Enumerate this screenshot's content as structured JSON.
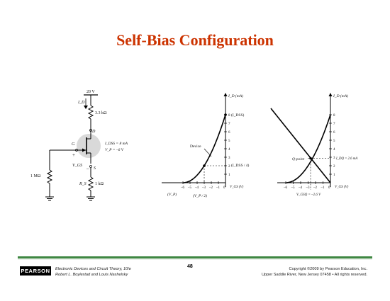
{
  "slide": {
    "title": "Self-Bias Configuration"
  },
  "circuit": {
    "supply": "20 V",
    "id_label": "I_D",
    "rd": "3.3 kΩ",
    "drain": "D",
    "gate": "G",
    "source": "S",
    "plus": "+",
    "minus": "–",
    "vgs": "V_GS",
    "rg": "1 MΩ",
    "rs_label": "R_S",
    "rs": "1 kΩ",
    "idss_spec": "I_DSS = 8 mA",
    "vp_spec": "V_P = –6 V"
  },
  "graph1": {
    "ylabel": "I_D (mA)",
    "xlabel": "V_GS (V)",
    "idss_label": "(I_DSS)",
    "device_label": "Device",
    "quarter_label": "(I_DSS / 4)",
    "vp_label": "(V_P)",
    "half_vp_label": "(V_P / 2)",
    "y_ticks": [
      "1",
      "2",
      "3",
      "4",
      "5",
      "6",
      "7",
      "8"
    ],
    "x_ticks": [
      "–6",
      "–5",
      "–4",
      "–3",
      "–2",
      "–1",
      "0"
    ]
  },
  "graph2": {
    "ylabel": "I_D (mA)",
    "xlabel": "V_GS (V)",
    "qpoint_label": "Q-point",
    "idq_label": "I_DQ = 2.6 mA",
    "vgsq_label": "V_GSQ = –2.6 V",
    "y_ticks": [
      "1",
      "2",
      "3",
      "4",
      "5",
      "6",
      "7",
      "8"
    ],
    "x_ticks": [
      "–6",
      "–5",
      "–4",
      "–3",
      "–2",
      "–1",
      "0"
    ]
  },
  "footer": {
    "logo": "PEARSON",
    "book": "Electronic Devices and Circuit Theory, 10/e",
    "authors": "Robert L. Boylestad and Louis Nashelsky",
    "page": "48",
    "copyright": "Copyright ©2009 by Pearson Education, Inc.",
    "address": "Upper Saddle River, New Jersey 07458 • All rights reserved."
  },
  "colors": {
    "title": "#cc3300",
    "rule": "#2e7d32",
    "jfet_shade": "#d9d9d9"
  }
}
